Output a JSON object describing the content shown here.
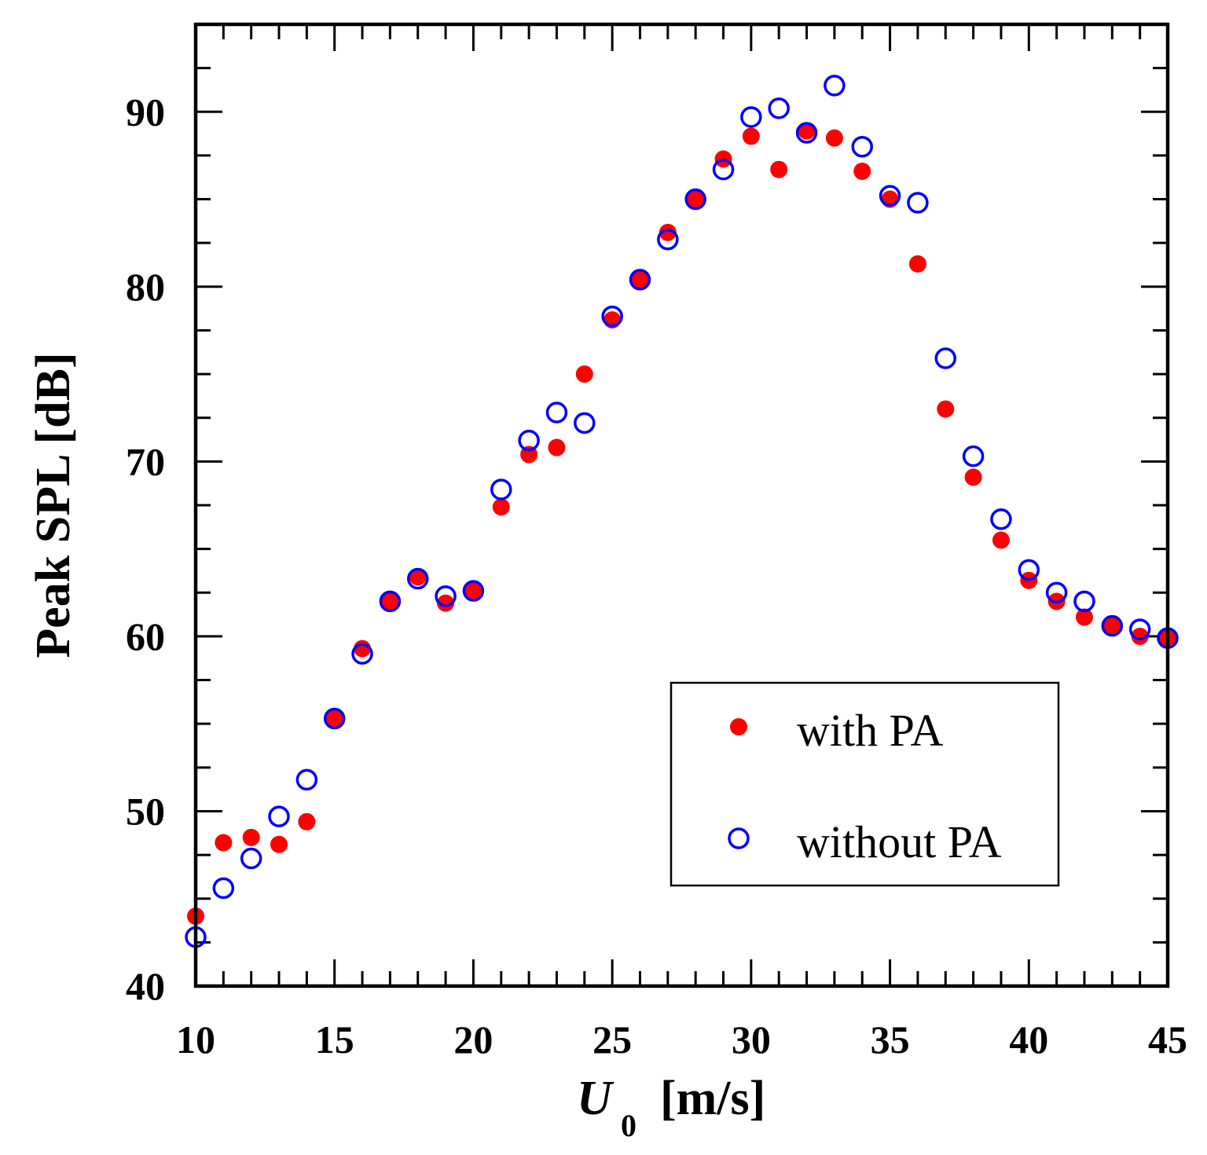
{
  "chart_data": {
    "type": "scatter",
    "title": "",
    "xlabel": {
      "main": "U",
      "subscript": "0",
      "unit": "[m/s]"
    },
    "ylabel": "Peak SPL [dB]",
    "xlim": [
      10,
      45
    ],
    "ylim": [
      40,
      95
    ],
    "xticks": [
      10,
      15,
      20,
      25,
      30,
      35,
      40,
      45
    ],
    "yticks": [
      40,
      50,
      60,
      70,
      80,
      90
    ],
    "x_minor_step": 1,
    "y_minor_step": 2.5,
    "grid": false,
    "legend_position": "bottom-right",
    "series": [
      {
        "name": "with PA",
        "marker": "filled-circle",
        "color": "#ff0000",
        "x": [
          10,
          11,
          12,
          13,
          14,
          15,
          16,
          17,
          18,
          19,
          20,
          21,
          22,
          23,
          24,
          25,
          26,
          27,
          28,
          29,
          30,
          31,
          32,
          33,
          34,
          35,
          36,
          37,
          38,
          39,
          40,
          41,
          42,
          43,
          44,
          45
        ],
        "y": [
          44.0,
          48.2,
          48.5,
          48.1,
          49.4,
          55.3,
          59.3,
          62.0,
          63.4,
          61.9,
          62.6,
          67.4,
          70.4,
          70.8,
          75.0,
          78.1,
          80.4,
          83.1,
          85.0,
          87.3,
          88.6,
          86.7,
          88.9,
          88.5,
          86.6,
          85.0,
          81.3,
          73.0,
          69.1,
          65.5,
          63.2,
          62.0,
          61.1,
          60.6,
          60.0,
          59.9
        ]
      },
      {
        "name": "without PA",
        "marker": "open-circle",
        "color": "#0000ff",
        "x": [
          10,
          11,
          12,
          13,
          14,
          15,
          16,
          17,
          18,
          19,
          20,
          21,
          22,
          23,
          24,
          25,
          26,
          27,
          28,
          29,
          30,
          31,
          32,
          33,
          34,
          35,
          36,
          37,
          38,
          39,
          40,
          41,
          42,
          43,
          44,
          45
        ],
        "y": [
          42.8,
          45.6,
          47.3,
          49.7,
          51.8,
          55.3,
          59.0,
          62.0,
          63.3,
          62.3,
          62.6,
          68.4,
          71.2,
          72.8,
          72.2,
          78.3,
          80.4,
          82.7,
          85.0,
          86.7,
          89.7,
          90.2,
          88.8,
          91.5,
          88.0,
          85.2,
          84.8,
          75.9,
          70.3,
          66.7,
          63.8,
          62.5,
          62.0,
          60.6,
          60.4,
          59.9
        ]
      }
    ]
  }
}
